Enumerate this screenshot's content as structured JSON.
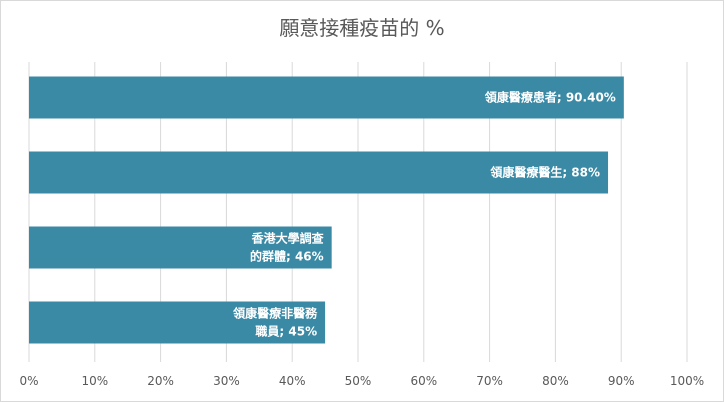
{
  "chart_data": {
    "type": "bar",
    "orientation": "horizontal",
    "title": "願意接種疫苗的 %",
    "xlabel": "",
    "ylabel": "",
    "xlim": [
      0,
      100
    ],
    "x_ticks": [
      "0%",
      "10%",
      "20%",
      "30%",
      "40%",
      "50%",
      "60%",
      "70%",
      "80%",
      "90%",
      "100%"
    ],
    "grid": true,
    "categories": [
      "領康醫療患者",
      "領康醫療醫生",
      "香港大學調查的群體",
      "領康醫療非醫務職員"
    ],
    "values": [
      90.4,
      88,
      46,
      45
    ],
    "data_labels": [
      [
        "領康醫療患者; 90.40%"
      ],
      [
        "領康醫療醫生; 88%"
      ],
      [
        "香港大學調查",
        "的群體; 46%"
      ],
      [
        "領康醫療非醫務",
        "職員; 45%"
      ]
    ],
    "bar_color": "#3a8aa6"
  }
}
